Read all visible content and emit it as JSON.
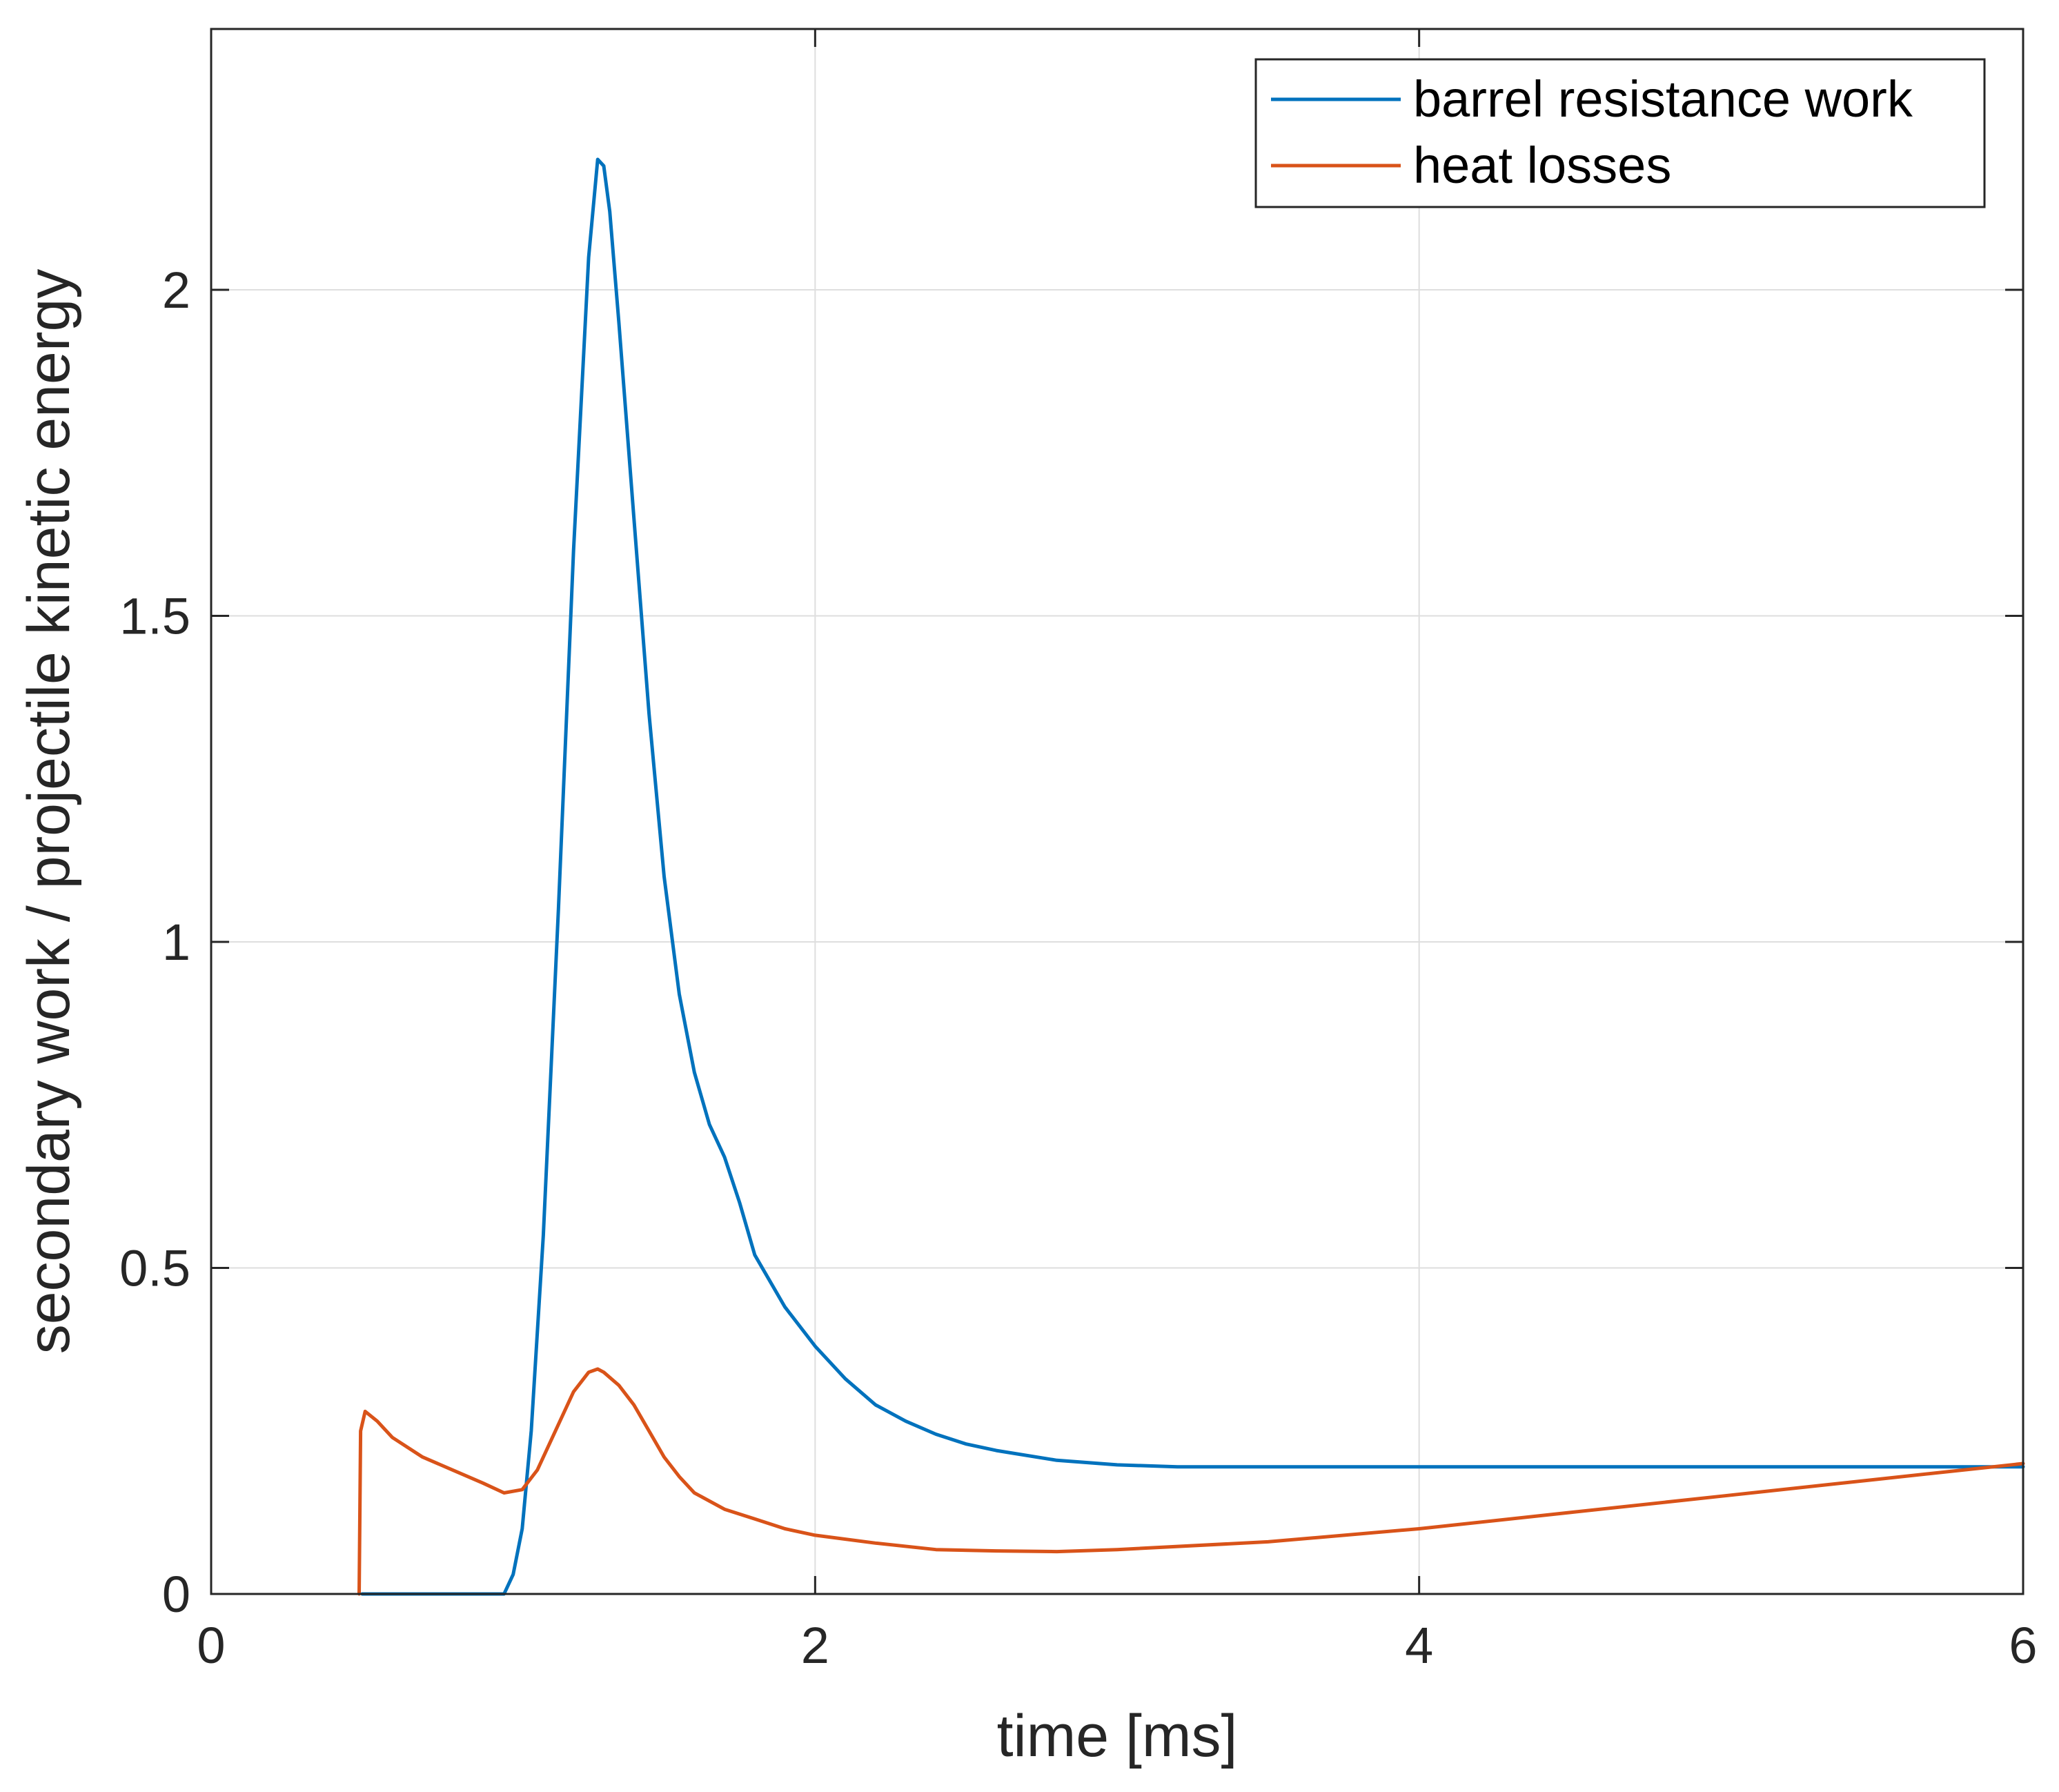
{
  "chart_data": {
    "type": "line",
    "title": "",
    "xlabel": "time [ms]",
    "ylabel": "secondary work / projectile kinetic energy",
    "xlim": [
      0,
      6
    ],
    "ylim": [
      0,
      2.4
    ],
    "xticks": [
      0,
      2,
      4,
      6
    ],
    "xtick_labels": [
      "0",
      "2",
      "4",
      "6"
    ],
    "yticks": [
      0,
      0.5,
      1,
      1.5,
      2
    ],
    "ytick_labels": [
      "0",
      "0.5",
      "1",
      "1.5",
      "2"
    ],
    "grid": true,
    "legend_position": "top-right",
    "series": [
      {
        "name": "barrel resistance work",
        "color": "#0072BD",
        "x": [
          0.5,
          0.8,
          0.97,
          1.0,
          1.03,
          1.06,
          1.1,
          1.15,
          1.2,
          1.25,
          1.28,
          1.3,
          1.32,
          1.35,
          1.4,
          1.45,
          1.5,
          1.55,
          1.6,
          1.65,
          1.7,
          1.75,
          1.8,
          1.9,
          2.0,
          2.1,
          2.2,
          2.3,
          2.4,
          2.5,
          2.6,
          2.8,
          3.0,
          3.2,
          3.5,
          4.0,
          5.0,
          6.0
        ],
        "y": [
          0.0,
          0.0,
          0.0,
          0.03,
          0.1,
          0.25,
          0.55,
          1.05,
          1.6,
          2.05,
          2.2,
          2.19,
          2.12,
          1.95,
          1.65,
          1.35,
          1.1,
          0.92,
          0.8,
          0.72,
          0.67,
          0.6,
          0.52,
          0.44,
          0.38,
          0.33,
          0.29,
          0.265,
          0.245,
          0.23,
          0.22,
          0.205,
          0.198,
          0.195,
          0.195,
          0.195,
          0.195,
          0.195
        ]
      },
      {
        "name": "heat losses",
        "color": "#D95319",
        "x": [
          0.49,
          0.495,
          0.51,
          0.55,
          0.6,
          0.7,
          0.8,
          0.9,
          0.97,
          1.03,
          1.08,
          1.14,
          1.2,
          1.25,
          1.28,
          1.3,
          1.35,
          1.4,
          1.45,
          1.5,
          1.55,
          1.6,
          1.7,
          1.8,
          1.9,
          2.0,
          2.2,
          2.4,
          2.6,
          2.8,
          3.0,
          3.5,
          4.0,
          4.5,
          5.0,
          5.5,
          6.0
        ],
        "y": [
          0.0,
          0.25,
          0.28,
          0.265,
          0.24,
          0.21,
          0.19,
          0.17,
          0.155,
          0.16,
          0.19,
          0.25,
          0.31,
          0.34,
          0.345,
          0.34,
          0.32,
          0.29,
          0.25,
          0.21,
          0.18,
          0.155,
          0.13,
          0.115,
          0.1,
          0.09,
          0.078,
          0.068,
          0.066,
          0.065,
          0.068,
          0.08,
          0.1,
          0.125,
          0.15,
          0.175,
          0.2
        ]
      }
    ]
  }
}
